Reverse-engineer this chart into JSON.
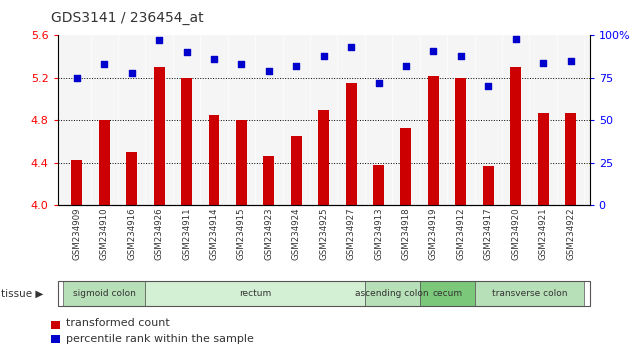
{
  "title": "GDS3141 / 236454_at",
  "samples": [
    "GSM234909",
    "GSM234910",
    "GSM234916",
    "GSM234926",
    "GSM234911",
    "GSM234914",
    "GSM234915",
    "GSM234923",
    "GSM234924",
    "GSM234925",
    "GSM234927",
    "GSM234913",
    "GSM234918",
    "GSM234919",
    "GSM234912",
    "GSM234917",
    "GSM234920",
    "GSM234921",
    "GSM234922"
  ],
  "bar_values": [
    4.43,
    4.8,
    4.5,
    5.3,
    5.2,
    4.85,
    4.8,
    4.46,
    4.65,
    4.9,
    5.15,
    4.38,
    4.73,
    5.22,
    5.2,
    4.37,
    5.3,
    4.87,
    4.87
  ],
  "dot_values": [
    75,
    83,
    78,
    97,
    90,
    86,
    83,
    79,
    82,
    88,
    93,
    72,
    82,
    91,
    88,
    70,
    98,
    84,
    85
  ],
  "bar_color": "#cc0000",
  "dot_color": "#0000cc",
  "ylim_left": [
    4.0,
    5.6
  ],
  "ylim_right": [
    0,
    100
  ],
  "yticks_left": [
    4.0,
    4.4,
    4.8,
    5.2,
    5.6
  ],
  "yticks_right": [
    0,
    25,
    50,
    75,
    100
  ],
  "ytick_labels_right": [
    "0",
    "25",
    "50",
    "75",
    "100%"
  ],
  "hlines": [
    4.4,
    4.8,
    5.2
  ],
  "tissue_groups": [
    {
      "label": "sigmoid colon",
      "start": 0,
      "end": 3,
      "color": "#b8e0b8"
    },
    {
      "label": "rectum",
      "start": 3,
      "end": 11,
      "color": "#d4f0d4"
    },
    {
      "label": "ascending colon",
      "start": 11,
      "end": 13,
      "color": "#b8e0b8"
    },
    {
      "label": "cecum",
      "start": 13,
      "end": 15,
      "color": "#7bc87b"
    },
    {
      "label": "transverse colon",
      "start": 15,
      "end": 19,
      "color": "#b8e0b8"
    }
  ],
  "legend_bar_label": "transformed count",
  "legend_dot_label": "percentile rank within the sample",
  "plot_bg_color": "#f5f5f5",
  "title_fontsize": 10
}
